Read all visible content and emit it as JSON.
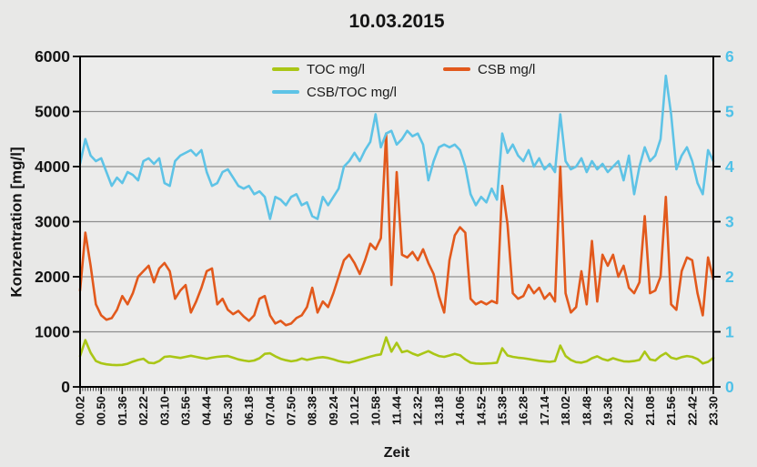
{
  "chart_data": {
    "type": "line",
    "title": "10.03.2015",
    "x_axis": {
      "label": "Zeit",
      "tick_labels": [
        "00.02",
        "00.50",
        "01.36",
        "02.22",
        "03.10",
        "03.56",
        "04.44",
        "05.30",
        "06.18",
        "07.04",
        "07.50",
        "08.38",
        "09.24",
        "10.12",
        "10.58",
        "11.44",
        "12.32",
        "13.18",
        "14.06",
        "14.52",
        "15.38",
        "16.28",
        "17.14",
        "18.02",
        "18.48",
        "19.36",
        "20.22",
        "21.08",
        "21.56",
        "22.42",
        "23.30"
      ],
      "samples_per_tick_interval": 4
    },
    "y_axis_left": {
      "label": "Konzentration [mg/l]",
      "range": [
        0,
        6000
      ],
      "ticks": [
        0,
        1000,
        2000,
        3000,
        4000,
        5000,
        6000
      ],
      "color": "#141414"
    },
    "y_axis_right": {
      "range": [
        0,
        6
      ],
      "ticks": [
        0,
        1,
        2,
        3,
        4,
        5,
        6
      ],
      "color": "#4fc1e8"
    },
    "legend": {
      "position": "top-inside",
      "entries": [
        "TOC mg/l",
        "CSB mg/l",
        "CSB/TOC mg/l"
      ]
    },
    "grid": "horizontal",
    "series": [
      {
        "name": "TOC mg/l",
        "color": "#aac616",
        "axis": "left",
        "values": [
          560,
          850,
          620,
          470,
          430,
          410,
          400,
          395,
          400,
          420,
          460,
          490,
          510,
          440,
          430,
          470,
          545,
          555,
          540,
          525,
          545,
          565,
          545,
          525,
          510,
          530,
          545,
          555,
          560,
          530,
          500,
          480,
          465,
          480,
          520,
          600,
          610,
          555,
          510,
          485,
          465,
          480,
          515,
          490,
          510,
          530,
          540,
          525,
          500,
          470,
          450,
          440,
          465,
          495,
          520,
          550,
          575,
          590,
          900,
          640,
          800,
          630,
          655,
          605,
          570,
          610,
          650,
          600,
          560,
          545,
          570,
          600,
          575,
          500,
          440,
          425,
          420,
          425,
          430,
          440,
          700,
          570,
          545,
          530,
          520,
          505,
          490,
          475,
          465,
          455,
          470,
          750,
          560,
          490,
          450,
          440,
          465,
          520,
          555,
          505,
          480,
          520,
          490,
          465,
          460,
          470,
          490,
          640,
          500,
          480,
          560,
          615,
          530,
          505,
          540,
          560,
          545,
          505,
          425,
          455,
          525
        ]
      },
      {
        "name": "CSB mg/l",
        "color": "#e2591c",
        "axis": "left",
        "values": [
          1750,
          2800,
          2200,
          1500,
          1300,
          1220,
          1250,
          1400,
          1650,
          1500,
          1700,
          2000,
          2100,
          2200,
          1900,
          2150,
          2250,
          2100,
          1600,
          1750,
          1850,
          1350,
          1550,
          1800,
          2100,
          2150,
          1500,
          1600,
          1400,
          1320,
          1380,
          1280,
          1200,
          1300,
          1600,
          1650,
          1300,
          1150,
          1200,
          1120,
          1150,
          1250,
          1300,
          1450,
          1800,
          1350,
          1550,
          1450,
          1700,
          2000,
          2300,
          2400,
          2250,
          2050,
          2300,
          2600,
          2500,
          2700,
          4600,
          1850,
          3900,
          2400,
          2350,
          2450,
          2300,
          2500,
          2250,
          2050,
          1650,
          1350,
          2300,
          2750,
          2900,
          2800,
          1600,
          1500,
          1550,
          1500,
          1560,
          1520,
          3650,
          2950,
          1700,
          1600,
          1650,
          1850,
          1700,
          1800,
          1600,
          1700,
          1550,
          4000,
          1700,
          1350,
          1450,
          2100,
          1500,
          2650,
          1550,
          2400,
          2200,
          2400,
          2000,
          2200,
          1800,
          1700,
          1900,
          3100,
          1700,
          1750,
          2000,
          3450,
          1500,
          1400,
          2100,
          2350,
          2300,
          1700,
          1300,
          2350,
          1950
        ]
      },
      {
        "name": "CSB/TOC mg/l",
        "color": "#5ec3e6",
        "axis": "right",
        "values": [
          4.05,
          4.5,
          4.2,
          4.1,
          4.15,
          3.9,
          3.65,
          3.8,
          3.7,
          3.9,
          3.85,
          3.75,
          4.1,
          4.15,
          4.05,
          4.15,
          3.7,
          3.65,
          4.1,
          4.2,
          4.25,
          4.3,
          4.2,
          4.3,
          3.9,
          3.65,
          3.7,
          3.9,
          3.95,
          3.8,
          3.65,
          3.6,
          3.65,
          3.5,
          3.55,
          3.45,
          3.05,
          3.45,
          3.4,
          3.3,
          3.45,
          3.5,
          3.3,
          3.35,
          3.1,
          3.05,
          3.45,
          3.3,
          3.45,
          3.6,
          4.0,
          4.1,
          4.25,
          4.1,
          4.3,
          4.45,
          4.95,
          4.35,
          4.6,
          4.65,
          4.4,
          4.5,
          4.65,
          4.55,
          4.6,
          4.4,
          3.75,
          4.1,
          4.35,
          4.4,
          4.35,
          4.4,
          4.3,
          4.0,
          3.5,
          3.3,
          3.45,
          3.35,
          3.6,
          3.4,
          4.6,
          4.25,
          4.4,
          4.2,
          4.1,
          4.3,
          4.0,
          4.15,
          3.95,
          4.05,
          3.9,
          4.95,
          4.1,
          3.95,
          4.0,
          4.15,
          3.9,
          4.1,
          3.95,
          4.05,
          3.9,
          4.0,
          4.1,
          3.75,
          4.2,
          3.5,
          4.0,
          4.35,
          4.1,
          4.2,
          4.5,
          5.65,
          4.95,
          3.95,
          4.2,
          4.35,
          4.1,
          3.7,
          3.5,
          4.3,
          4.1
        ]
      }
    ]
  },
  "style": {
    "page_background": "#e8e8e7",
    "plot_background": "#ececeb",
    "gridline_color": "#8e8e8e",
    "axis_color": "#000000"
  }
}
